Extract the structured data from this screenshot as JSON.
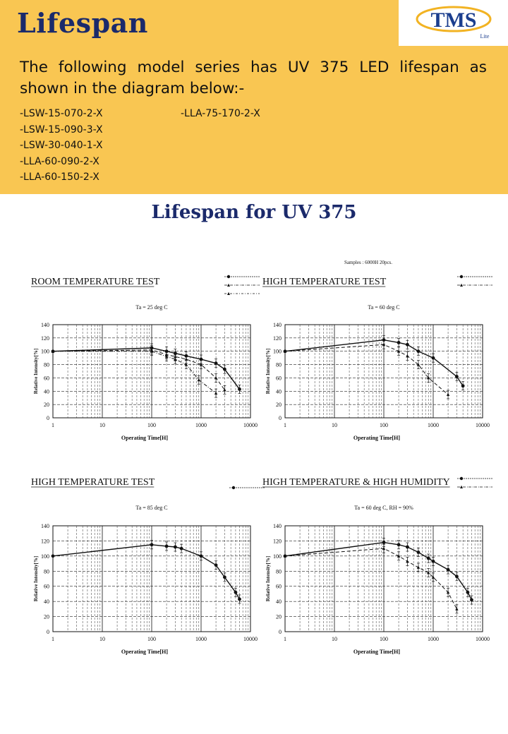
{
  "header": {
    "title": "Lifespan",
    "intro": "The following model series has UV 375 LED lifespan as shown in the diagram below:-",
    "models_col1": [
      "-LSW-15-070-2-X",
      "-LSW-15-090-3-X",
      "-LSW-30-040-1-X",
      "-LLA-60-090-2-X",
      "-LLA-60-150-2-X"
    ],
    "models_col2": [
      "-LLA-75-170-2-X"
    ]
  },
  "logo": {
    "text": "TMS",
    "subtext": "Lite"
  },
  "section_title": "Lifespan for UV 375",
  "samples_note": "Samples : 6000H 20pcs.",
  "colors": {
    "banner": "#f9c652",
    "title": "#1b2a6b",
    "ink": "#111111"
  },
  "chart_data": [
    {
      "type": "line",
      "title": "ROOM TEMPERATURE TEST",
      "condition": "Ta = 25 deg C",
      "xlabel": "Operating Time[H]",
      "ylabel": "Relative Intensity[%]",
      "x_scale": "log",
      "xlim": [
        1,
        10000
      ],
      "ylim": [
        0,
        140
      ],
      "x_ticks": [
        "1",
        "10",
        "100",
        "1000",
        "10000"
      ],
      "y_ticks": [
        "0",
        "20",
        "40",
        "60",
        "80",
        "100",
        "120",
        "140"
      ],
      "legend_placement": "top-right",
      "series": [
        {
          "style": "solid",
          "x": [
            1,
            100,
            200,
            300,
            500,
            1000,
            2000,
            3000,
            6000
          ],
          "y": [
            100,
            105,
            100,
            97,
            93,
            88,
            82,
            73,
            43
          ]
        },
        {
          "style": "dashed",
          "x": [
            1,
            100,
            200,
            300,
            500,
            1000,
            2000,
            3000
          ],
          "y": [
            100,
            102,
            95,
            92,
            88,
            80,
            60,
            42
          ]
        },
        {
          "style": "dash-dot",
          "x": [
            1,
            100,
            200,
            300,
            500,
            900,
            2000
          ],
          "y": [
            100,
            100,
            92,
            88,
            80,
            57,
            37
          ]
        }
      ]
    },
    {
      "type": "line",
      "title": "HIGH TEMPERATURE TEST",
      "condition": "Ta = 60 deg C",
      "xlabel": "Operating Time[H]",
      "ylabel": "Relative Intensity[%]",
      "x_scale": "log",
      "xlim": [
        1,
        10000
      ],
      "ylim": [
        0,
        140
      ],
      "x_ticks": [
        "1",
        "10",
        "100",
        "1000",
        "10000"
      ],
      "y_ticks": [
        "0",
        "20",
        "40",
        "60",
        "80",
        "100",
        "120",
        "140"
      ],
      "legend_placement": "top-right",
      "series": [
        {
          "style": "solid",
          "x": [
            1,
            100,
            200,
            300,
            500,
            1000,
            3000,
            4000
          ],
          "y": [
            100,
            117,
            113,
            110,
            100,
            90,
            62,
            48
          ]
        },
        {
          "style": "dashed",
          "x": [
            1,
            100,
            200,
            300,
            500,
            800,
            2000
          ],
          "y": [
            100,
            110,
            100,
            93,
            80,
            60,
            35
          ]
        }
      ]
    },
    {
      "type": "line",
      "title": "HIGH TEMPERATURE TEST",
      "condition": "Ta = 85 deg C",
      "xlabel": "Operating Time[H]",
      "ylabel": "Relative Intensity[%]",
      "x_scale": "log",
      "xlim": [
        1,
        10000
      ],
      "ylim": [
        0,
        140
      ],
      "x_ticks": [
        "1",
        "10",
        "100",
        "1000",
        "10000"
      ],
      "y_ticks": [
        "0",
        "20",
        "40",
        "60",
        "80",
        "100",
        "120",
        "140"
      ],
      "legend_placement": "top-right",
      "series": [
        {
          "style": "solid",
          "x": [
            1,
            100,
            200,
            300,
            400,
            1000,
            2000,
            3000,
            5000,
            6000
          ],
          "y": [
            100,
            115,
            113,
            112,
            110,
            100,
            88,
            72,
            52,
            43
          ]
        }
      ]
    },
    {
      "type": "line",
      "title": "HIGH TEMPERATURE & HIGH HUMIDITY",
      "condition": "Ta = 60 deg C, RH = 90%",
      "xlabel": "Operating Time[H]",
      "ylabel": "Relative Intensity[%]",
      "x_scale": "log",
      "xlim": [
        1,
        10000
      ],
      "ylim": [
        0,
        140
      ],
      "x_ticks": [
        "1",
        "10",
        "100",
        "1000",
        "10000"
      ],
      "y_ticks": [
        "0",
        "20",
        "40",
        "60",
        "80",
        "100",
        "120",
        "140"
      ],
      "legend_placement": "top-right",
      "series": [
        {
          "style": "solid",
          "x": [
            1,
            100,
            200,
            300,
            500,
            800,
            1000,
            2000,
            3000,
            5000,
            6000
          ],
          "y": [
            100,
            118,
            115,
            112,
            105,
            97,
            93,
            82,
            73,
            52,
            42
          ]
        },
        {
          "style": "dashed",
          "x": [
            1,
            100,
            200,
            300,
            500,
            800,
            1000,
            2000,
            3000
          ],
          "y": [
            100,
            110,
            100,
            93,
            85,
            78,
            72,
            52,
            30
          ]
        }
      ]
    }
  ]
}
